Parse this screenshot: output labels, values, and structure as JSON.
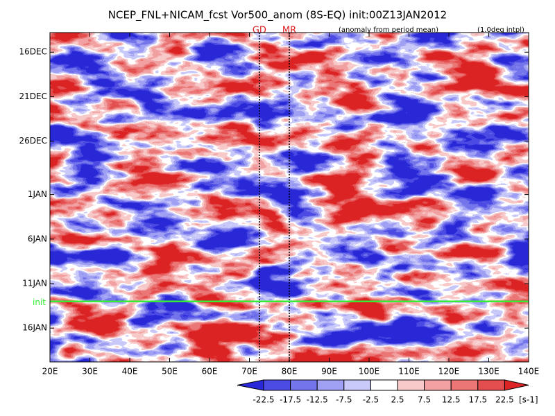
{
  "chart_data": {
    "type": "heatmap",
    "title": "NCEP_FNL+NICAM_fcst Vor500_anom (8S-EQ) init:00Z13JAN2012",
    "annotations": [
      "(anomaly from period mean)",
      "(1.0deg intpl)"
    ],
    "xlim": [
      20,
      140
    ],
    "xticks": [
      {
        "value": 20,
        "label": "20E"
      },
      {
        "value": 30,
        "label": "30E"
      },
      {
        "value": 40,
        "label": "40E"
      },
      {
        "value": 50,
        "label": "50E"
      },
      {
        "value": 60,
        "label": "60E"
      },
      {
        "value": 70,
        "label": "70E"
      },
      {
        "value": 80,
        "label": "80E"
      },
      {
        "value": 90,
        "label": "90E"
      },
      {
        "value": 100,
        "label": "100E"
      },
      {
        "value": 110,
        "label": "110E"
      },
      {
        "value": 120,
        "label": "120E"
      },
      {
        "value": 130,
        "label": "130E"
      },
      {
        "value": 140,
        "label": "140E"
      }
    ],
    "ylim": [
      -2.2,
      34.8
    ],
    "yticks": [
      {
        "value": 0,
        "label": "16DEC"
      },
      {
        "value": 5,
        "label": "21DEC"
      },
      {
        "value": 10,
        "label": "26DEC"
      },
      {
        "value": 16,
        "label": "1JAN"
      },
      {
        "value": 21,
        "label": "6JAN"
      },
      {
        "value": 26,
        "label": "11JAN"
      },
      {
        "value": 31,
        "label": "16JAN"
      }
    ],
    "vertical_lines": [
      {
        "label": "GD",
        "x": 72.5
      },
      {
        "label": "MR",
        "x": 80
      }
    ],
    "horizontal_line": {
      "label": "init",
      "y": 28,
      "color": "#33ee33"
    },
    "colorbar": {
      "levels": [
        -22.5,
        -17.5,
        -12.5,
        -7.5,
        -2.5,
        2.5,
        7.5,
        12.5,
        17.5,
        22.5
      ],
      "colors": [
        "#2828d8",
        "#4c4ce4",
        "#7474ec",
        "#a0a0f4",
        "#cacafa",
        "#ffffff",
        "#f8caca",
        "#f2a2a2",
        "#ec7676",
        "#e44e4e",
        "#dc2424"
      ],
      "unit": "[s-1]"
    }
  }
}
